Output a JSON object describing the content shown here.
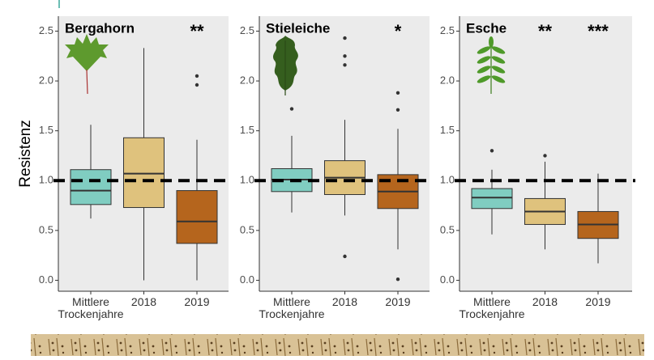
{
  "chart_data": [
    {
      "type": "box",
      "title": "Bergahorn",
      "ylabel": "Resistenz",
      "categories": [
        "Mittlere Trockenjahre",
        "2018",
        "2019"
      ],
      "colors": [
        "#80cdc1",
        "#dfc27d",
        "#b5651d"
      ],
      "annotations": [
        null,
        null,
        "**"
      ],
      "boxes": [
        {
          "whislo": 0.62,
          "q1": 0.76,
          "med": 0.9,
          "q3": 1.11,
          "whishi": 1.56,
          "fliers": []
        },
        {
          "whislo": 0.0,
          "q1": 0.73,
          "med": 1.07,
          "q3": 1.43,
          "whishi": 2.33,
          "fliers": []
        },
        {
          "whislo": 0.0,
          "q1": 0.37,
          "med": 0.59,
          "q3": 0.9,
          "whishi": 1.41,
          "fliers": [
            2.05,
            1.96
          ]
        }
      ],
      "hline": 1,
      "ylim": [
        -0.11,
        2.65
      ],
      "yticks": [
        {
          "value": 0,
          "label": "0.0"
        },
        0.5,
        {
          "value": 1,
          "label": "1.0"
        },
        1.5,
        {
          "value": 2,
          "label": "2.0"
        },
        2.5
      ]
    },
    {
      "type": "box",
      "title": "Stieleiche",
      "categories": [
        "Mittlere Trockenjahre",
        "2018",
        "2019"
      ],
      "colors": [
        "#80cdc1",
        "#dfc27d",
        "#b5651d"
      ],
      "annotations": [
        null,
        null,
        "*"
      ],
      "boxes": [
        {
          "whislo": 0.68,
          "q1": 0.89,
          "med": 1.01,
          "q3": 1.12,
          "whishi": 1.45,
          "fliers": [
            1.72
          ]
        },
        {
          "whislo": 0.65,
          "q1": 0.86,
          "med": 1.03,
          "q3": 1.2,
          "whishi": 1.61,
          "fliers": [
            2.43,
            2.25,
            2.16,
            0.24
          ]
        },
        {
          "whislo": 0.31,
          "q1": 0.72,
          "med": 0.89,
          "q3": 1.06,
          "whishi": 1.52,
          "fliers": [
            1.88,
            1.71,
            0.01
          ]
        }
      ],
      "hline": 1,
      "ylim": [
        -0.11,
        2.65
      ],
      "yticks": [
        {
          "value": 0,
          "label": "0.0"
        },
        0.5,
        {
          "value": 1,
          "label": "1.0"
        },
        1.5,
        {
          "value": 2,
          "label": "2.0"
        },
        2.5
      ]
    },
    {
      "type": "box",
      "title": "Esche",
      "categories": [
        "Mittlere Trockenjahre",
        "2018",
        "2019"
      ],
      "colors": [
        "#80cdc1",
        "#dfc27d",
        "#b5651d"
      ],
      "annotations": [
        null,
        "**",
        "***"
      ],
      "boxes": [
        {
          "whislo": 0.46,
          "q1": 0.72,
          "med": 0.83,
          "q3": 0.92,
          "whishi": 1.11,
          "fliers": [
            1.3
          ]
        },
        {
          "whislo": 0.31,
          "q1": 0.56,
          "med": 0.69,
          "q3": 0.82,
          "whishi": 1.19,
          "fliers": [
            1.25
          ]
        },
        {
          "whislo": 0.17,
          "q1": 0.42,
          "med": 0.56,
          "q3": 0.69,
          "whishi": 1.07,
          "fliers": []
        }
      ],
      "hline": 1,
      "ylim": [
        -0.11,
        2.65
      ],
      "yticks": [
        {
          "value": 0,
          "label": "0.0"
        },
        0.5,
        {
          "value": 1,
          "label": "1.0"
        },
        1.5,
        {
          "value": 2,
          "label": "2.0"
        },
        2.5
      ]
    }
  ]
}
